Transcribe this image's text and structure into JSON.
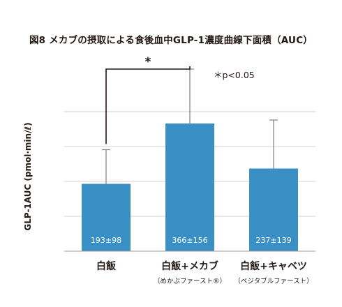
{
  "chart_data": {
    "type": "bar",
    "title": "図8 メカブの摂取による食後血中GLP-1濃度曲線下面積（AUC）",
    "ylabel": "GLP-1AUC (pmol·min/ℓ)",
    "xlabel": "",
    "categories": [
      "白飯",
      "白飯+メカブ",
      "白飯+キャベツ"
    ],
    "category_sublabels": [
      "",
      "（めかぶファースト®）",
      "（ベジタブルファースト）"
    ],
    "values": [
      193,
      366,
      237
    ],
    "errors": [
      98,
      156,
      139
    ],
    "bar_labels": [
      "193±98",
      "366±156",
      "237±139"
    ],
    "ylim": [
      0,
      500
    ],
    "yticks": [
      0,
      100,
      200,
      300,
      400,
      500
    ],
    "grid": true,
    "bar_color": "#3a8fc4",
    "significance": {
      "between": [
        0,
        1
      ],
      "marker": "*",
      "note": "＊p<0.05"
    }
  }
}
